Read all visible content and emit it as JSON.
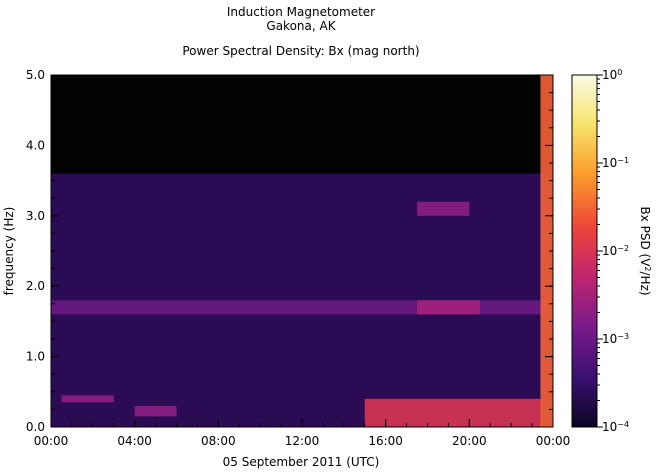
{
  "chart_data": {
    "type": "heatmap",
    "title": "Induction Magnetometer",
    "subtitle": "Gakona, AK",
    "plot_title": "Power Spectral Density: Bx (mag north)",
    "xlabel": "05 September 2011 (UTC)",
    "ylabel": "frequency (Hz)",
    "x_ticks": [
      "00:00",
      "04:00",
      "08:00",
      "12:00",
      "16:00",
      "20:00",
      "00:00"
    ],
    "y_ticks": [
      "0.0",
      "1.0",
      "2.0",
      "3.0",
      "4.0",
      "5.0"
    ],
    "xlim_hours": [
      0,
      24
    ],
    "ylim": [
      0,
      5
    ],
    "colorbar": {
      "label_prefix": "Bx PSD (V",
      "label_sup": "2",
      "label_suffix": "/Hz)",
      "scale": "log",
      "range": [
        0.0001,
        1
      ],
      "ticks": [
        {
          "base": "10",
          "exp": "0"
        },
        {
          "base": "10",
          "exp": "−1"
        },
        {
          "base": "10",
          "exp": "−2"
        },
        {
          "base": "10",
          "exp": "−3"
        },
        {
          "base": "10",
          "exp": "−4"
        }
      ],
      "colors": [
        "#0b0622",
        "#3a1070",
        "#7a1b8a",
        "#c0266e",
        "#f0463a",
        "#fb9a2b",
        "#f7e36a",
        "#fbfbe6"
      ]
    },
    "features": [
      {
        "name": "background",
        "freq_range": [
          0,
          3.6
        ],
        "time_range": [
          0,
          24
        ],
        "level": 0.0003
      },
      {
        "name": "band-1.7Hz",
        "freq_range": [
          1.6,
          1.8
        ],
        "time_range": [
          0,
          24
        ],
        "level": 0.001
      },
      {
        "name": "burst-0.4Hz",
        "freq_range": [
          0.35,
          0.45
        ],
        "time_range": [
          0.5,
          3
        ],
        "level": 0.002
      },
      {
        "name": "burst-0.2Hz",
        "freq_range": [
          0.15,
          0.3
        ],
        "time_range": [
          4,
          6
        ],
        "level": 0.002
      },
      {
        "name": "late-band-1.7Hz",
        "freq_range": [
          1.6,
          1.8
        ],
        "time_range": [
          17.5,
          20.5
        ],
        "level": 0.003
      },
      {
        "name": "late-band-3.1Hz",
        "freq_range": [
          3.0,
          3.2
        ],
        "time_range": [
          17.5,
          20
        ],
        "level": 0.002
      },
      {
        "name": "low-freq-enhancement",
        "freq_range": [
          0,
          0.4
        ],
        "time_range": [
          15,
          23.5
        ],
        "level": 0.01
      },
      {
        "name": "storm-onset",
        "freq_range": [
          0,
          5
        ],
        "time_range": [
          23.4,
          24
        ],
        "level": 0.03
      }
    ]
  }
}
